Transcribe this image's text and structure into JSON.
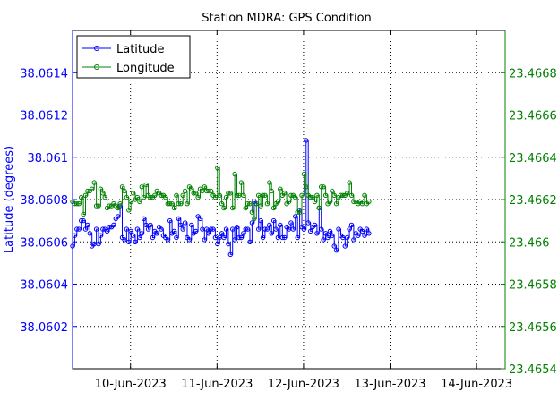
{
  "chart_data": {
    "type": "line",
    "title": "Station MDRA: GPS Condition",
    "ylabel_left": "Latitude (degrees)",
    "ylabel_right": "",
    "xlabel": "",
    "grid": true,
    "legend_placement": "top-left",
    "x_ticks": [
      {
        "x": 1.0,
        "label": "10-Jun-2023"
      },
      {
        "x": 2.0,
        "label": "11-Jun-2023"
      },
      {
        "x": 3.0,
        "label": "12-Jun-2023"
      },
      {
        "x": 4.0,
        "label": "13-Jun-2023"
      },
      {
        "x": 5.0,
        "label": "14-Jun-2023"
      }
    ],
    "xlim": [
      0.33,
      5.33
    ],
    "ylim_left": [
      38.06,
      38.0616
    ],
    "ylim_right": [
      23.4654,
      23.467
    ],
    "y_ticks_left": [
      "38.0602",
      "38.0604",
      "38.0606",
      "38.0608",
      "38.061",
      "38.0612",
      "38.0614"
    ],
    "y_ticks_right": [
      "23.4654",
      "23.4656",
      "23.4658",
      "23.466",
      "23.4662",
      "23.4664",
      "23.4666",
      "23.4668"
    ],
    "series": [
      {
        "name": "Latitude",
        "axis": "left",
        "color": "#0000ff",
        "x_start": 0.33,
        "x_step": 0.025,
        "values": [
          38.06058,
          38.06063,
          38.06066,
          38.06066,
          38.0607,
          38.0607,
          38.06066,
          38.06068,
          38.06064,
          38.06058,
          38.06059,
          38.06066,
          38.06059,
          38.06063,
          38.06066,
          38.06066,
          38.06065,
          38.06067,
          38.06067,
          38.06068,
          38.06071,
          38.06072,
          38.06077,
          38.06062,
          38.06061,
          38.06066,
          38.0606,
          38.06065,
          38.06063,
          38.0606,
          38.06066,
          38.06062,
          38.06064,
          38.06071,
          38.06068,
          38.06066,
          38.06068,
          38.06062,
          38.06065,
          38.06064,
          38.06067,
          38.06066,
          38.06063,
          38.06062,
          38.06061,
          38.0607,
          38.06064,
          38.06065,
          38.06062,
          38.06071,
          38.06068,
          38.06066,
          38.06069,
          38.06062,
          38.06061,
          38.06068,
          38.06064,
          38.06065,
          38.06072,
          38.06071,
          38.06066,
          38.06061,
          38.06066,
          38.06064,
          38.06066,
          38.06066,
          38.06062,
          38.06059,
          38.06062,
          38.06064,
          38.06062,
          38.06066,
          38.06059,
          38.06054,
          38.06066,
          38.06061,
          38.06067,
          38.06062,
          38.06062,
          38.06064,
          38.06066,
          38.06066,
          38.0606,
          38.06069,
          38.06079,
          38.06078,
          38.06066,
          38.0607,
          38.06062,
          38.06066,
          38.06066,
          38.06068,
          38.06064,
          38.0607,
          38.06066,
          38.06062,
          38.06068,
          38.06062,
          38.06062,
          38.06067,
          38.06066,
          38.06069,
          38.06066,
          38.06072,
          38.06062,
          38.06075,
          38.06067,
          38.06066,
          38.06108,
          38.06069,
          38.06065,
          38.06067,
          38.06068,
          38.06064,
          38.06076,
          38.06066,
          38.06061,
          38.06064,
          38.06062,
          38.06065,
          38.06063,
          38.06058,
          38.06056,
          38.06066,
          38.06063,
          38.06062,
          38.06058,
          38.06062,
          38.06066,
          38.06068,
          38.06061,
          38.06064,
          38.06063,
          38.06066,
          38.06065,
          38.06063,
          38.06066,
          38.06064
        ]
      },
      {
        "name": "Longitude",
        "axis": "right",
        "color": "#008000",
        "x_start": 0.33,
        "x_step": 0.025,
        "values": [
          23.46619,
          23.46618,
          23.46618,
          23.46618,
          23.46621,
          23.46613,
          23.46622,
          23.46624,
          23.46624,
          23.46625,
          23.46628,
          23.46617,
          23.46617,
          23.46625,
          23.46623,
          23.46621,
          23.46616,
          23.46617,
          23.46617,
          23.46618,
          23.46617,
          23.46616,
          23.46618,
          23.46626,
          23.46624,
          23.46621,
          23.46615,
          23.46619,
          23.46623,
          23.4662,
          23.46621,
          23.46619,
          23.46626,
          23.46621,
          23.46627,
          23.46622,
          23.46621,
          23.46621,
          23.46622,
          23.46624,
          23.46623,
          23.46622,
          23.46622,
          23.46621,
          23.46618,
          23.46618,
          23.46618,
          23.46616,
          23.46622,
          23.46618,
          23.46618,
          23.46622,
          23.46624,
          23.46618,
          23.46626,
          23.46625,
          23.46623,
          23.46623,
          23.46621,
          23.46625,
          23.46624,
          23.46626,
          23.46624,
          23.46624,
          23.46624,
          23.46622,
          23.46621,
          23.46635,
          23.46622,
          23.46618,
          23.46616,
          23.46621,
          23.46623,
          23.46623,
          23.46616,
          23.46632,
          23.46622,
          23.46622,
          23.46628,
          23.46622,
          23.46616,
          23.46618,
          23.46618,
          23.46614,
          23.46611,
          23.46618,
          23.46622,
          23.46617,
          23.46622,
          23.46622,
          23.46618,
          23.46628,
          23.46624,
          23.46616,
          23.46618,
          23.46619,
          23.46625,
          23.46622,
          23.46623,
          23.46618,
          23.46619,
          23.46622,
          23.46622,
          23.46621,
          23.46614,
          23.46614,
          23.46622,
          23.46632,
          23.46626,
          23.46622,
          23.46621,
          23.46621,
          23.46619,
          23.46622,
          23.46616,
          23.46626,
          23.46626,
          23.46622,
          23.46618,
          23.46619,
          23.46624,
          23.46622,
          23.46618,
          23.46621,
          23.46622,
          23.46622,
          23.46622,
          23.46623,
          23.46628,
          23.46622,
          23.46619,
          23.46619,
          23.46618,
          23.46619,
          23.46618,
          23.46622,
          23.46618,
          23.46619
        ]
      }
    ]
  }
}
